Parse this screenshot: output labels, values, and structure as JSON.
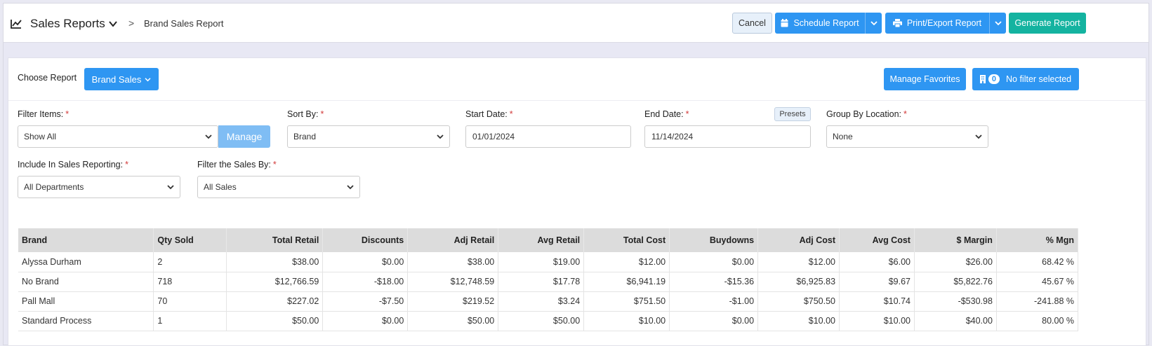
{
  "header": {
    "title": "Sales Reports",
    "breadcrumb_separator": ">",
    "subtitle": "Brand Sales Report",
    "cancel_label": "Cancel",
    "schedule_label": "Schedule Report",
    "print_label": "Print/Export Report",
    "generate_label": "Generate Report"
  },
  "toolbar": {
    "choose_label": "Choose Report",
    "report_select": "Brand Sales",
    "favorites_label": "Manage Favorites",
    "filter_count": "0",
    "filter_label": "No filter selected"
  },
  "form": {
    "filter_items_label": "Filter Items:",
    "filter_items_value": "Show All",
    "manage_label": "Manage",
    "sort_by_label": "Sort By:",
    "sort_by_value": "Brand",
    "start_date_label": "Start Date:",
    "start_date_value": "01/01/2024",
    "end_date_label": "End Date:",
    "end_date_value": "11/14/2024",
    "presets_label": "Presets",
    "group_by_label": "Group By Location:",
    "group_by_value": "None",
    "include_label": "Include In Sales Reporting:",
    "include_value": "All Departments",
    "filter_sales_label": "Filter the Sales By:",
    "filter_sales_value": "All Sales",
    "required_mark": "*"
  },
  "table": {
    "columns": [
      "Brand",
      "Qty Sold",
      "Total Retail",
      "Discounts",
      "Adj Retail",
      "Avg Retail",
      "Total Cost",
      "Buydowns",
      "Adj Cost",
      "Avg Cost",
      "$ Margin",
      "% Mgn"
    ],
    "rows": [
      [
        "Alyssa Durham",
        "2",
        "$38.00",
        "$0.00",
        "$38.00",
        "$19.00",
        "$12.00",
        "$0.00",
        "$12.00",
        "$6.00",
        "$26.00",
        "68.42 %"
      ],
      [
        "No Brand",
        "718",
        "$12,766.59",
        "-$18.00",
        "$12,748.59",
        "$17.78",
        "$6,941.19",
        "-$15.36",
        "$6,925.83",
        "$9.67",
        "$5,822.76",
        "45.67 %"
      ],
      [
        "Pall Mall",
        "70",
        "$227.02",
        "-$7.50",
        "$219.52",
        "$3.24",
        "$751.50",
        "-$1.00",
        "$750.50",
        "$10.74",
        "-$530.98",
        "-241.88 %"
      ],
      [
        "Standard Process",
        "1",
        "$50.00",
        "$0.00",
        "$50.00",
        "$50.00",
        "$10.00",
        "$0.00",
        "$10.00",
        "$10.00",
        "$40.00",
        "80.00 %"
      ]
    ]
  },
  "colors": {
    "primary": "#2e96f2",
    "success": "#14b3a0",
    "required": "#d23b3b",
    "table_header": "#dcdcdc"
  }
}
